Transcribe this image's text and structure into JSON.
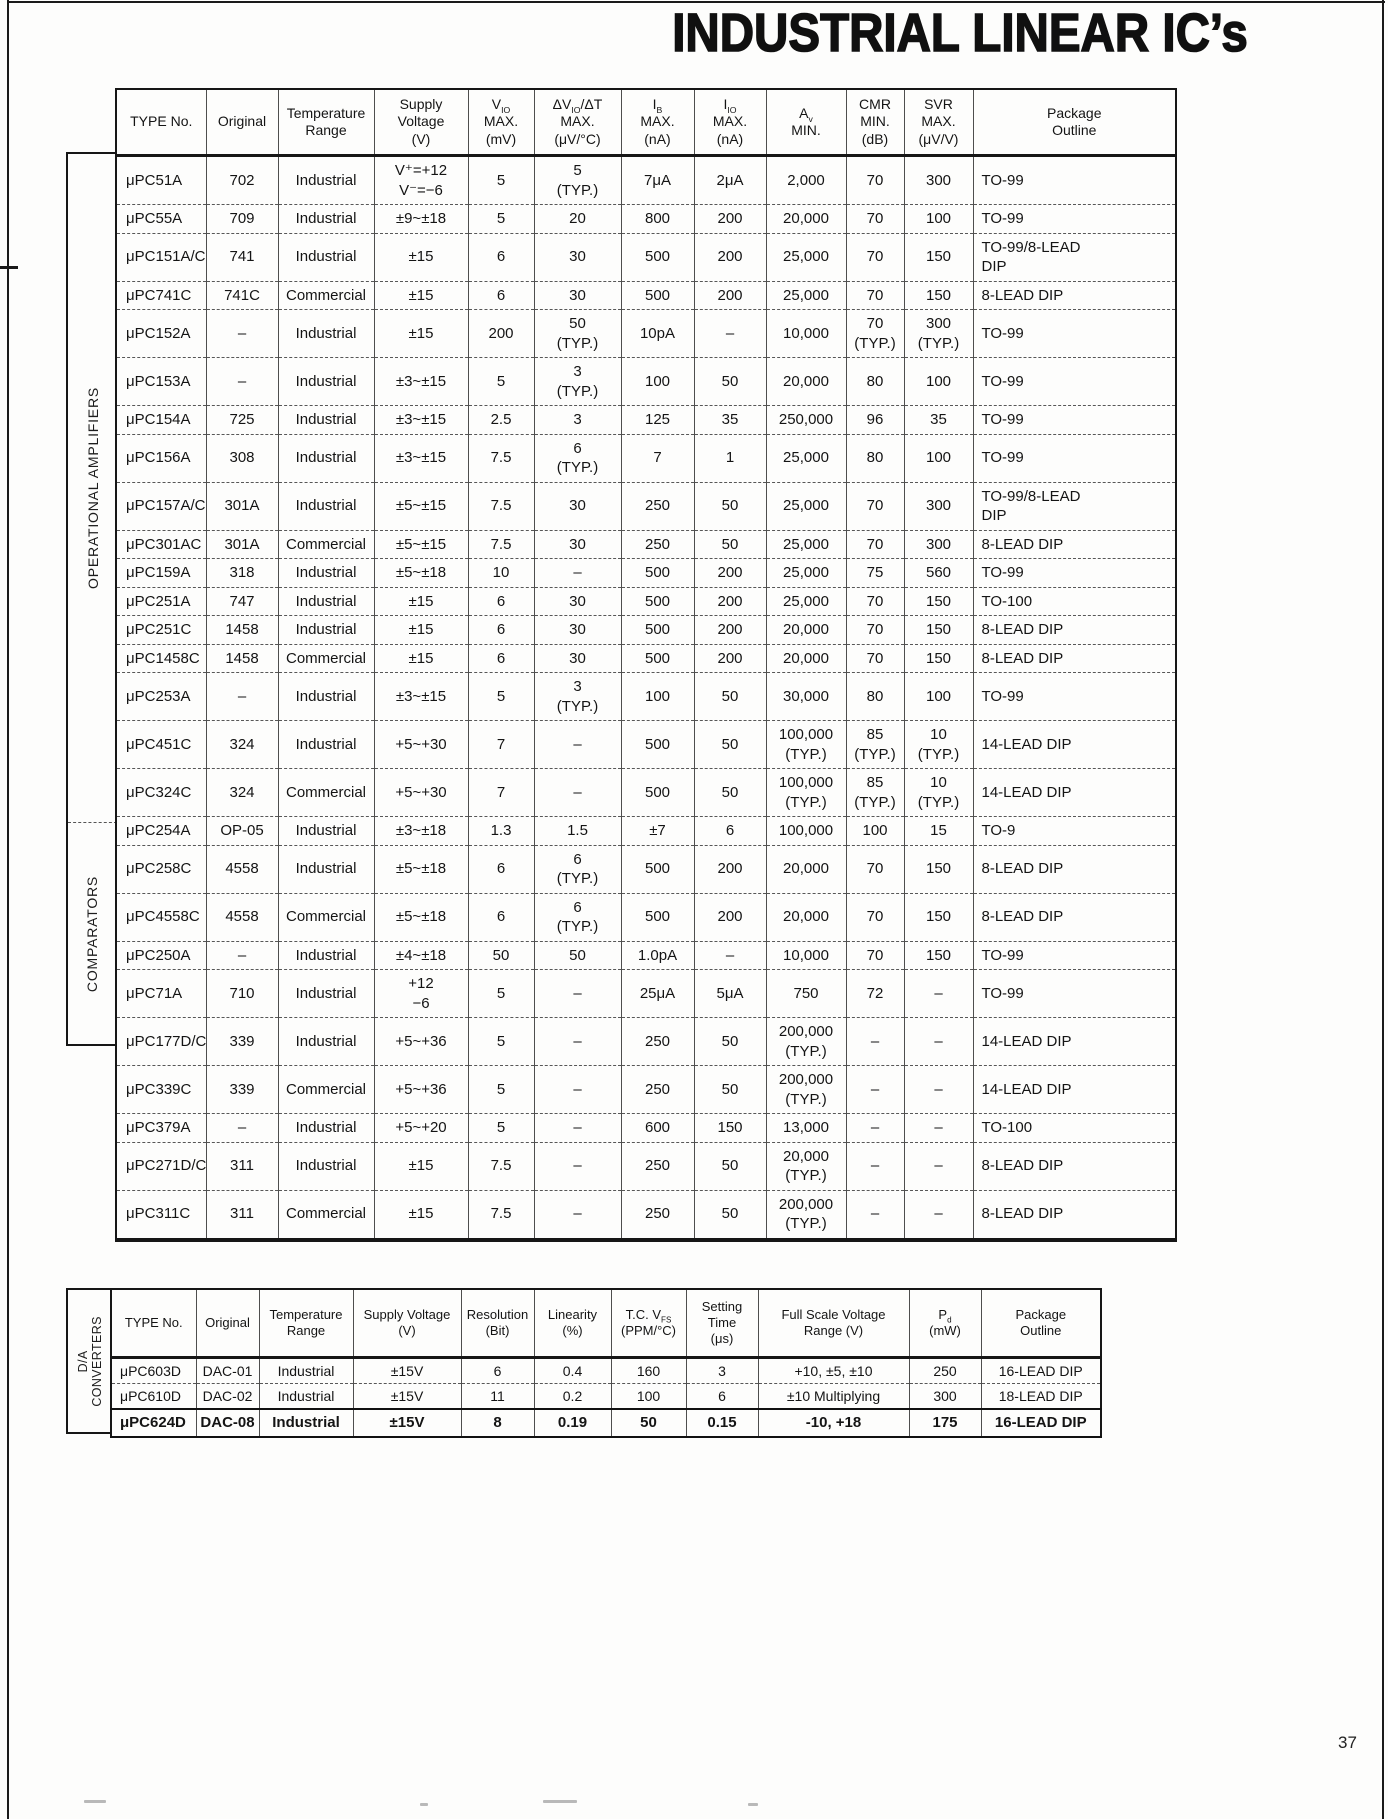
{
  "page": {
    "title": "INDUSTRIAL LINEAR IC’s",
    "page_number": "37"
  },
  "main_table": {
    "section_labels": {
      "opamps": "OPERATIONAL AMPLIFIERS",
      "comparators": "COMPARATORS"
    },
    "headers": [
      "TYPE No.",
      "Original",
      "Temperature\nRange",
      "Supply\nVoltage\n(V)",
      "V_IO_\nMAX.\n(mV)",
      "ΔV_IO_/ΔT\nMAX.\n(μV/°C)",
      "I_B_\nMAX.\n(nA)",
      "I_IO_\nMAX.\n(nA)",
      "A_v_\nMIN.",
      "CMR\nMIN.\n(dB)",
      "SVR\nMAX.\n(μV/V)",
      "Package\nOutline"
    ],
    "opamp_rows": [
      [
        "μPC51A",
        "702",
        "Industrial",
        "V⁺=+12\nV⁻=−6",
        "5",
        "5\n(TYP.)",
        "7μA",
        "2μA",
        "2,000",
        "70",
        "300",
        "TO-99"
      ],
      [
        "μPC55A",
        "709",
        "Industrial",
        "±9~±18",
        "5",
        "20",
        "800",
        "200",
        "20,000",
        "70",
        "100",
        "TO-99"
      ],
      [
        "μPC151A/C",
        "741",
        "Industrial",
        "±15",
        "6",
        "30",
        "500",
        "200",
        "25,000",
        "70",
        "150",
        "TO-99/8-LEAD\nDIP"
      ],
      [
        "μPC741C",
        "741C",
        "Commercial",
        "±15",
        "6",
        "30",
        "500",
        "200",
        "25,000",
        "70",
        "150",
        "8-LEAD DIP"
      ],
      [
        "μPC152A",
        "–",
        "Industrial",
        "±15",
        "200",
        "50\n(TYP.)",
        "10pA",
        "–",
        "10,000",
        "70\n(TYP.)",
        "300\n(TYP.)",
        "TO-99"
      ],
      [
        "μPC153A",
        "–",
        "Industrial",
        "±3~±15",
        "5",
        "3\n(TYP.)",
        "100",
        "50",
        "20,000",
        "80",
        "100",
        "TO-99"
      ],
      [
        "μPC154A",
        "725",
        "Industrial",
        "±3~±15",
        "2.5",
        "3",
        "125",
        "35",
        "250,000",
        "96",
        "35",
        "TO-99"
      ],
      [
        "μPC156A",
        "308",
        "Industrial",
        "±3~±15",
        "7.5",
        "6\n(TYP.)",
        "7",
        "1",
        "25,000",
        "80",
        "100",
        "TO-99"
      ],
      [
        "μPC157A/C",
        "301A",
        "Industrial",
        "±5~±15",
        "7.5",
        "30",
        "250",
        "50",
        "25,000",
        "70",
        "300",
        "TO-99/8-LEAD\nDIP"
      ],
      [
        "μPC301AC",
        "301A",
        "Commercial",
        "±5~±15",
        "7.5",
        "30",
        "250",
        "50",
        "25,000",
        "70",
        "300",
        "8-LEAD DIP"
      ],
      [
        "μPC159A",
        "318",
        "Industrial",
        "±5~±18",
        "10",
        "–",
        "500",
        "200",
        "25,000",
        "75",
        "560",
        "TO-99"
      ],
      [
        "μPC251A",
        "747",
        "Industrial",
        "±15",
        "6",
        "30",
        "500",
        "200",
        "25,000",
        "70",
        "150",
        "TO-100"
      ],
      [
        "μPC251C",
        "1458",
        "Industrial",
        "±15",
        "6",
        "30",
        "500",
        "200",
        "20,000",
        "70",
        "150",
        "8-LEAD DIP"
      ],
      [
        "μPC1458C",
        "1458",
        "Commercial",
        "±15",
        "6",
        "30",
        "500",
        "200",
        "20,000",
        "70",
        "150",
        "8-LEAD DIP"
      ],
      [
        "μPC253A",
        "–",
        "Industrial",
        "±3~±15",
        "5",
        "3\n(TYP.)",
        "100",
        "50",
        "30,000",
        "80",
        "100",
        "TO-99"
      ],
      [
        "μPC451C",
        "324",
        "Industrial",
        "+5~+30",
        "7",
        "–",
        "500",
        "50",
        "100,000\n(TYP.)",
        "85\n(TYP.)",
        "10\n(TYP.)",
        "14-LEAD DIP"
      ],
      [
        "μPC324C",
        "324",
        "Commercial",
        "+5~+30",
        "7",
        "–",
        "500",
        "50",
        "100,000\n(TYP.)",
        "85\n(TYP.)",
        "10\n(TYP.)",
        "14-LEAD DIP"
      ],
      [
        "μPC254A",
        "OP-05",
        "Industrial",
        "±3~±18",
        "1.3",
        "1.5",
        "±7",
        "6",
        "100,000",
        "100",
        "15",
        "TO-9"
      ],
      [
        "μPC258C",
        "4558",
        "Industrial",
        "±5~±18",
        "6",
        "6\n(TYP.)",
        "500",
        "200",
        "20,000",
        "70",
        "150",
        "8-LEAD DIP"
      ],
      [
        "μPC4558C",
        "4558",
        "Commercial",
        "±5~±18",
        "6",
        "6\n(TYP.)",
        "500",
        "200",
        "20,000",
        "70",
        "150",
        "8-LEAD DIP"
      ],
      [
        "μPC250A",
        "–",
        "Industrial",
        "±4~±18",
        "50",
        "50",
        "1.0pA",
        "–",
        "10,000",
        "70",
        "150",
        "TO-99"
      ]
    ],
    "comparator_rows": [
      [
        "μPC71A",
        "710",
        "Industrial",
        "+12\n−6",
        "5",
        "–",
        "25μA",
        "5μA",
        "750",
        "72",
        "–",
        "TO-99"
      ],
      [
        "μPC177D/C",
        "339",
        "Industrial",
        "+5~+36",
        "5",
        "–",
        "250",
        "50",
        "200,000\n(TYP.)",
        "–",
        "–",
        "14-LEAD DIP"
      ],
      [
        "μPC339C",
        "339",
        "Commercial",
        "+5~+36",
        "5",
        "–",
        "250",
        "50",
        "200,000\n(TYP.)",
        "–",
        "–",
        "14-LEAD DIP"
      ],
      [
        "μPC379A",
        "–",
        "Industrial",
        "+5~+20",
        "5",
        "–",
        "600",
        "150",
        "13,000",
        "–",
        "–",
        "TO-100"
      ],
      [
        "μPC271D/C",
        "311",
        "Industrial",
        "±15",
        "7.5",
        "–",
        "250",
        "50",
        "20,000\n(TYP.)",
        "–",
        "–",
        "8-LEAD DIP"
      ],
      [
        "μPC311C",
        "311",
        "Commercial",
        "±15",
        "7.5",
        "–",
        "250",
        "50",
        "200,000\n(TYP.)",
        "–",
        "–",
        "8-LEAD DIP"
      ]
    ]
  },
  "dac_table": {
    "section_label": "D/A\nCONVERTERS",
    "headers": [
      "TYPE No.",
      "Original",
      "Temperature\nRange",
      "Supply Voltage\n(V)",
      "Resolution\n(Bit)",
      "Linearity\n(%)",
      "T.C. V_FS_\n(PPM/°C)",
      "Setting\nTime\n(μs)",
      "Full Scale Voltage\nRange (V)",
      "P_d_\n(mW)",
      "Package\nOutline"
    ],
    "rows": [
      [
        "μPC603D",
        "DAC-01",
        "Industrial",
        "±15V",
        "6",
        "0.4",
        "160",
        "3",
        "+10, ±5, ±10",
        "250",
        "16-LEAD DIP"
      ],
      [
        "μPC610D",
        "DAC-02",
        "Industrial",
        "±15V",
        "11",
        "0.2",
        "100",
        "6",
        "±10 Multiplying",
        "300",
        "18-LEAD DIP"
      ],
      [
        "μPC624D",
        "DAC-08",
        "Industrial",
        "±15V",
        "8",
        "0.19",
        "50",
        "0.15",
        "-10, +18",
        "175",
        "16-LEAD DIP"
      ]
    ]
  }
}
